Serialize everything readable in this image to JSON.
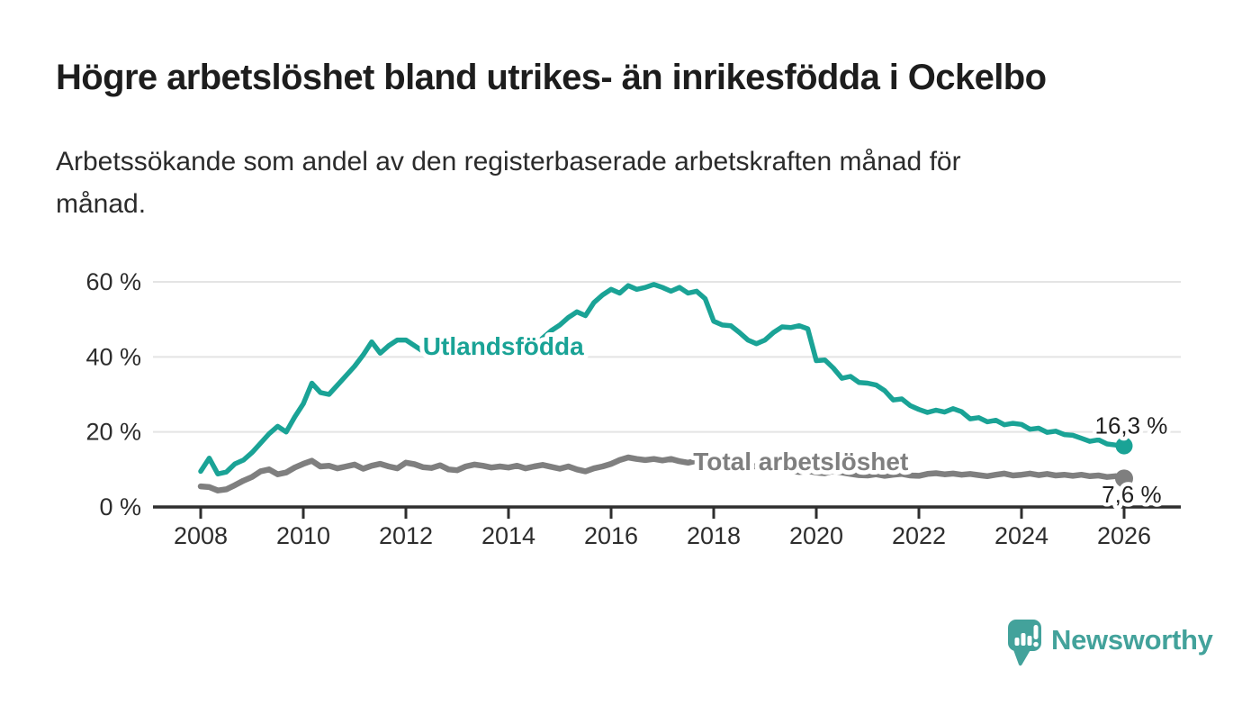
{
  "page": {
    "background": "#ffffff"
  },
  "header": {
    "title": "Högre arbetslöshet bland utrikes- än inrikesfödda i Ockelbo",
    "subtitle_line1": "Arbetssökande som andel av den registerbaserade arbetskraften månad för",
    "subtitle_line2": "månad."
  },
  "branding": {
    "name": "Newsworthy",
    "color": "#43a29b",
    "icon": "speech-bubble-bar-chart-icon"
  },
  "chart_data": {
    "type": "line",
    "title": "Högre arbetslöshet bland utrikes- än inrikesfödda i Ockelbo",
    "subtitle": "Arbetssökande som andel av den registerbaserade arbetskraften månad för månad.",
    "unit": "%",
    "grid": "horizontal",
    "legend_position": "inline-labels",
    "x_start": 2008.0,
    "x_step_years": 0.1666667,
    "xlim": [
      2007.05,
      2027.1
    ],
    "ylim": [
      0,
      65
    ],
    "x_ticks": [
      {
        "value": 2008,
        "label": "2008"
      },
      {
        "value": 2010,
        "label": "2010"
      },
      {
        "value": 2012,
        "label": "2012"
      },
      {
        "value": 2014,
        "label": "2014"
      },
      {
        "value": 2016,
        "label": "2016"
      },
      {
        "value": 2018,
        "label": "2018"
      },
      {
        "value": 2020,
        "label": "2020"
      },
      {
        "value": 2022,
        "label": "2022"
      },
      {
        "value": 2024,
        "label": "2024"
      },
      {
        "value": 2026,
        "label": "2026"
      }
    ],
    "y_ticks": [
      {
        "value": 0,
        "label": "0 %"
      },
      {
        "value": 20,
        "label": "20 %"
      },
      {
        "value": 40,
        "label": "40 %"
      },
      {
        "value": 60,
        "label": "60 %"
      }
    ],
    "series": [
      {
        "name": "Utlandsfödda",
        "color": "#1aa396",
        "end_label": "16,3 %",
        "end_value": 16.3,
        "label_anchor": {
          "year": 2012.33,
          "value": 40.6
        },
        "end_label_anchor": {
          "year": 2026.85,
          "value": 19.6
        },
        "values": [
          9.5,
          13.0,
          8.8,
          9.3,
          11.5,
          12.5,
          14.5,
          17.0,
          19.5,
          21.5,
          20.0,
          24.0,
          27.5,
          33.0,
          30.5,
          30.0,
          32.5,
          35.0,
          37.5,
          40.5,
          44.0,
          41.0,
          43.0,
          44.5,
          44.5,
          43.0,
          41.5,
          42.5,
          44.0,
          43.0,
          42.0,
          43.5,
          41.0,
          42.5,
          41.5,
          42.0,
          41.5,
          43.0,
          41.5,
          43.0,
          45.0,
          47.0,
          48.5,
          50.5,
          52.0,
          51.0,
          54.5,
          56.5,
          58.0,
          57.0,
          59.0,
          58.0,
          58.5,
          59.3,
          58.5,
          57.5,
          58.5,
          57.0,
          57.5,
          55.5,
          49.5,
          48.5,
          48.3,
          46.5,
          44.5,
          43.5,
          44.5,
          46.5,
          48.0,
          47.8,
          48.3,
          47.5,
          39.0,
          39.2,
          37.0,
          34.3,
          34.8,
          33.2,
          33.0,
          32.5,
          31.0,
          28.5,
          28.8,
          27.0,
          26.0,
          25.2,
          25.8,
          25.3,
          26.2,
          25.4,
          23.5,
          23.8,
          22.7,
          23.1,
          21.9,
          22.3,
          22.0,
          20.7,
          21.0,
          19.9,
          20.2,
          19.3,
          19.1,
          18.3,
          17.5,
          17.9,
          16.8,
          16.5,
          16.3
        ]
      },
      {
        "name": "Total arbetslöshet",
        "color": "#7f7f7f",
        "end_label": "7,6 %",
        "end_value": 7.6,
        "label_anchor": {
          "year": 2017.6,
          "value": 9.8
        },
        "end_label_anchor": {
          "year": 2026.73,
          "value": 1.2
        },
        "values": [
          5.5,
          5.3,
          4.4,
          4.7,
          5.8,
          7.0,
          8.0,
          9.5,
          10.0,
          8.7,
          9.2,
          10.5,
          11.5,
          12.3,
          10.8,
          11.0,
          10.3,
          10.8,
          11.3,
          10.2,
          11.0,
          11.5,
          10.8,
          10.3,
          11.8,
          11.4,
          10.6,
          10.4,
          11.1,
          10.0,
          9.8,
          10.8,
          11.3,
          11.0,
          10.5,
          10.8,
          10.5,
          11.0,
          10.3,
          10.8,
          11.2,
          10.7,
          10.2,
          10.8,
          10.0,
          9.5,
          10.3,
          10.8,
          11.5,
          12.5,
          13.2,
          12.8,
          12.5,
          12.8,
          12.4,
          12.8,
          12.2,
          11.8,
          12.3,
          11.9,
          11.4,
          11.8,
          11.0,
          10.5,
          11.0,
          10.8,
          10.4,
          10.0,
          10.2,
          9.6,
          9.3,
          9.6,
          9.2,
          9.0,
          9.6,
          9.2,
          8.8,
          8.5,
          8.4,
          8.7,
          8.3,
          8.6,
          8.8,
          8.4,
          8.3,
          8.8,
          9.0,
          8.7,
          8.9,
          8.6,
          8.8,
          8.5,
          8.2,
          8.6,
          8.9,
          8.4,
          8.6,
          8.9,
          8.5,
          8.8,
          8.4,
          8.6,
          8.3,
          8.6,
          8.2,
          8.4,
          8.0,
          8.2,
          7.6
        ]
      }
    ]
  }
}
